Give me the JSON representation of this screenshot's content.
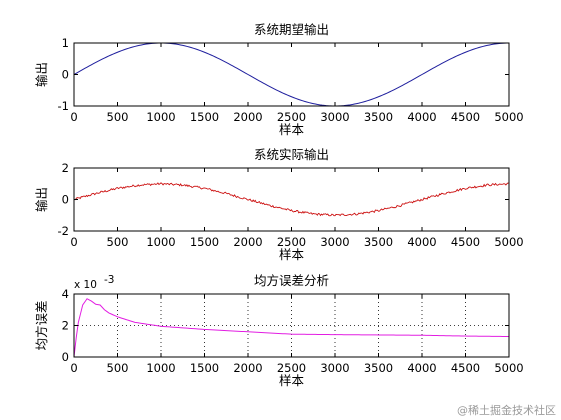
{
  "watermark": "@稀土掘金技术社区",
  "colors": {
    "background": "#ffffff",
    "axes": "#000000",
    "ideal_line": "#1f1f9e",
    "actual_line": "#cc1111",
    "mse_line": "#e21ee2",
    "grid": "#000000"
  },
  "chart_data": [
    {
      "type": "line",
      "title": "系统期望输出",
      "xlabel": "样本",
      "ylabel": "输出",
      "xlim": [
        0,
        5000
      ],
      "ylim": [
        -1,
        1
      ],
      "xticks": [
        0,
        500,
        1000,
        1500,
        2000,
        2500,
        3000,
        3500,
        4000,
        4500,
        5000
      ],
      "yticks": [
        -1,
        0,
        1
      ],
      "grid": false,
      "series": [
        {
          "color": "#1f1f9e",
          "x": [
            0,
            250,
            500,
            750,
            1000,
            1250,
            1500,
            1750,
            2000,
            2250,
            2500,
            2750,
            3000,
            3250,
            3500,
            3750,
            4000,
            4250,
            4500,
            4750,
            5000
          ],
          "y": [
            0,
            0.38,
            0.71,
            0.92,
            1.0,
            0.92,
            0.71,
            0.38,
            0,
            -0.38,
            -0.71,
            -0.92,
            -1.0,
            -0.92,
            -0.71,
            -0.38,
            0,
            0.38,
            0.71,
            0.92,
            1.0
          ]
        }
      ]
    },
    {
      "type": "line",
      "title": "系统实际输出",
      "xlabel": "样本",
      "ylabel": "输出",
      "xlim": [
        0,
        5000
      ],
      "ylim": [
        -2,
        2
      ],
      "xticks": [
        0,
        500,
        1000,
        1500,
        2000,
        2500,
        3000,
        3500,
        4000,
        4500,
        5000
      ],
      "yticks": [
        -2,
        0,
        2
      ],
      "grid": false,
      "series": [
        {
          "color": "#cc1111",
          "x": [
            0,
            250,
            500,
            750,
            1000,
            1250,
            1500,
            1750,
            2000,
            2250,
            2500,
            2750,
            3000,
            3250,
            3500,
            3750,
            4000,
            4250,
            4500,
            4750,
            5000
          ],
          "y": [
            0,
            0.38,
            0.71,
            0.92,
            1.0,
            0.92,
            0.71,
            0.38,
            0,
            -0.38,
            -0.71,
            -0.92,
            -1.0,
            -0.92,
            -0.71,
            -0.38,
            0,
            0.38,
            0.71,
            0.92,
            1.0
          ],
          "noise_amplitude": 0.07
        }
      ]
    },
    {
      "type": "line",
      "title": "均方误差分析",
      "xlabel": "样本",
      "ylabel": "均方误差",
      "xlim": [
        0,
        5000
      ],
      "ylim": [
        0,
        4
      ],
      "y_scale_factor": "x 10",
      "y_scale_exponent": "-3",
      "xticks": [
        0,
        500,
        1000,
        1500,
        2000,
        2500,
        3000,
        3500,
        4000,
        4500,
        5000
      ],
      "yticks": [
        0,
        2,
        4
      ],
      "grid": true,
      "series": [
        {
          "color": "#e21ee2",
          "x": [
            0,
            20,
            50,
            100,
            150,
            200,
            250,
            300,
            350,
            400,
            500,
            700,
            1000,
            1500,
            2000,
            2500,
            3000,
            3500,
            4000,
            4500,
            5000
          ],
          "y": [
            0,
            1.0,
            2.2,
            3.3,
            3.7,
            3.55,
            3.35,
            3.3,
            3.0,
            2.8,
            2.55,
            2.2,
            1.95,
            1.75,
            1.6,
            1.45,
            1.42,
            1.4,
            1.38,
            1.33,
            1.3
          ]
        }
      ]
    }
  ]
}
